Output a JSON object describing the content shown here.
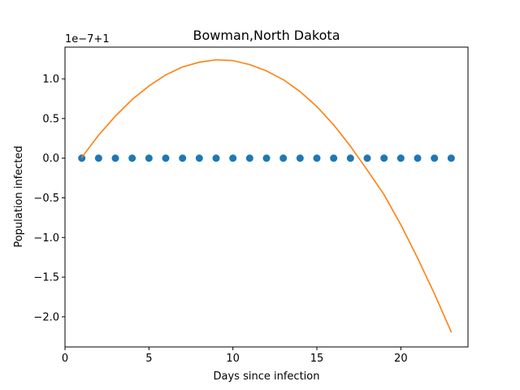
{
  "chart_data": {
    "type": "scatter",
    "title": "Bowman,North Dakota",
    "xlabel": "Days since infection",
    "ylabel": "Population infected",
    "y_offset_label": "1e−7+1",
    "xlim": [
      0,
      24
    ],
    "ylim": [
      -2.38,
      1.4
    ],
    "x_ticks": [
      0,
      5,
      10,
      15,
      20
    ],
    "x_tick_labels": [
      "0",
      "5",
      "10",
      "15",
      "20"
    ],
    "y_ticks": [
      -2.0,
      -1.5,
      -1.0,
      -0.5,
      0.0,
      0.5,
      1.0
    ],
    "y_tick_labels": [
      "−2.0",
      "−1.5",
      "−1.0",
      "−0.5",
      "0.0",
      "0.5",
      "1.0"
    ],
    "grid": false,
    "legend": "none",
    "series": [
      {
        "kind": "scatter",
        "color": "#1f77b4",
        "x": [
          1,
          2,
          3,
          4,
          5,
          6,
          7,
          8,
          9,
          10,
          11,
          12,
          13,
          14,
          15,
          16,
          17,
          18,
          19,
          20,
          21,
          22,
          23
        ],
        "y": [
          0,
          0,
          0,
          0,
          0,
          0,
          0,
          0,
          0,
          0,
          0,
          0,
          0,
          0,
          0,
          0,
          0,
          0,
          0,
          0,
          0,
          0,
          0
        ]
      },
      {
        "kind": "line",
        "color": "#ff7f0e",
        "x": [
          1,
          2,
          3,
          4,
          5,
          6,
          7,
          8,
          9,
          10,
          11,
          12,
          13,
          14,
          15,
          16,
          17,
          18,
          19,
          20,
          21,
          22,
          23
        ],
        "y": [
          0.01,
          0.29,
          0.53,
          0.74,
          0.91,
          1.05,
          1.15,
          1.21,
          1.24,
          1.23,
          1.18,
          1.1,
          0.99,
          0.84,
          0.65,
          0.42,
          0.15,
          -0.15,
          -0.46,
          -0.84,
          -1.26,
          -1.71,
          -2.19
        ]
      }
    ]
  }
}
